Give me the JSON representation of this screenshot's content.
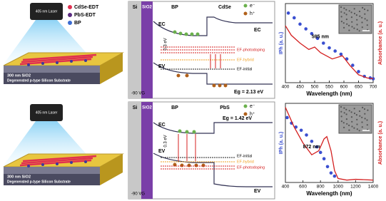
{
  "devices": {
    "legend": [
      "CdSe-EDT",
      "PbS-EDT",
      "BP"
    ],
    "panels": [
      {
        "laser": "405 nm Laser",
        "oxide": "300 nm SiO2",
        "substrate": "Degenerated p-type Silicon Substrate"
      },
      {
        "laser": "405 nm Laser",
        "oxide": "300 nm SiO2",
        "substrate": "Degenerated p-type Silicon Substrate"
      }
    ]
  },
  "band_diagrams": [
    {
      "si": "Si",
      "sio2": "SiO2",
      "left": "BP",
      "right": "CdSe",
      "electron": "e⁻",
      "hole": "h⁺",
      "ec_left": "EC",
      "ev_left": "EV",
      "edge_right": "EC",
      "levels": [
        "EF-photodoping",
        "EF-hybrid",
        "EF-initial"
      ],
      "offset": "0.3 eV",
      "gap": "Eg = 2.13 eV",
      "gate": "-90 VG"
    },
    {
      "si": "Si",
      "sio2": "SiO2",
      "left": "BP",
      "right": "PbS",
      "electron": "e⁻",
      "hole": "h⁺",
      "ec_left": "EC",
      "ev_left": "EV",
      "edge_right": "EV",
      "levels": [
        "EF-initial",
        "EF-hybrid",
        "EF-photodoping"
      ],
      "offset": "0.3 eV",
      "gap": "Eg = 1.42 eV",
      "gate": "-90 VG"
    }
  ],
  "chart_data": [
    {
      "type": "combo",
      "x_label": "Wavelength (nm)",
      "y_label": "IPh (a. u.)",
      "y2_label": "Absorbance (a. u.)",
      "annotation": "595 nm",
      "xlim": [
        400,
        700
      ],
      "xticks": [
        400,
        450,
        500,
        550,
        600,
        650,
        700
      ],
      "ylim": [
        0,
        1
      ],
      "series": [
        {
          "type": "scatter",
          "color": "#3a4fd0",
          "x": [
            410,
            430,
            450,
            470,
            490,
            510,
            530,
            550,
            570,
            590,
            610,
            630,
            650,
            670,
            690,
            700
          ],
          "values": [
            0.88,
            0.82,
            0.74,
            0.68,
            0.62,
            0.56,
            0.5,
            0.44,
            0.4,
            0.36,
            0.3,
            0.22,
            0.14,
            0.08,
            0.06,
            0.05
          ]
        },
        {
          "type": "line",
          "color": "#d42020",
          "x": [
            400,
            420,
            450,
            480,
            500,
            520,
            560,
            595,
            620,
            650,
            680,
            700
          ],
          "values": [
            0.72,
            0.6,
            0.5,
            0.42,
            0.45,
            0.38,
            0.3,
            0.34,
            0.22,
            0.1,
            0.06,
            0.05
          ]
        }
      ]
    },
    {
      "type": "combo",
      "x_label": "Wavelength (nm)",
      "y_label": "IPh (a. u.)",
      "y2_label": "Absorbance (a. u.)",
      "annotation": "872 nm",
      "xlim": [
        400,
        1400
      ],
      "xticks": [
        400,
        600,
        800,
        1000,
        1200,
        1400
      ],
      "ylim": [
        0,
        1
      ],
      "series": [
        {
          "type": "scatter",
          "color": "#3a4fd0",
          "x": [
            420,
            470,
            520,
            580,
            640,
            700,
            760,
            800,
            840,
            880,
            920,
            960
          ],
          "values": [
            0.82,
            0.75,
            0.7,
            0.66,
            0.6,
            0.52,
            0.45,
            0.38,
            0.3,
            0.2,
            0.12,
            0.08
          ]
        },
        {
          "type": "line",
          "color": "#d42020",
          "x": [
            400,
            500,
            600,
            700,
            780,
            840,
            872,
            920,
            960,
            1000,
            1100,
            1200,
            1400
          ],
          "values": [
            0.95,
            0.7,
            0.5,
            0.35,
            0.4,
            0.55,
            0.58,
            0.4,
            0.15,
            0.05,
            0.03,
            0.04,
            0.03
          ]
        }
      ]
    }
  ]
}
